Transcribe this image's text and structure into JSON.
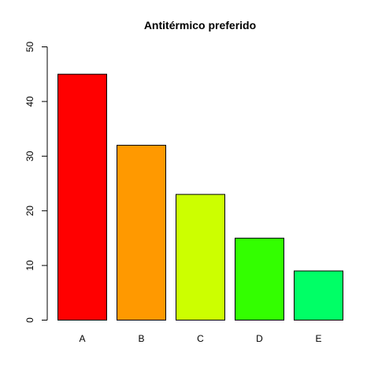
{
  "chart_data": {
    "type": "bar",
    "title": "Antitérmico preferido",
    "xlabel": "",
    "ylabel": "",
    "categories": [
      "A",
      "B",
      "C",
      "D",
      "E"
    ],
    "values": [
      45,
      32,
      23,
      15,
      9
    ],
    "colors": [
      "#FF0000",
      "#FF9900",
      "#CCFF00",
      "#33FF00",
      "#00FF66"
    ],
    "ylim": [
      0,
      50
    ],
    "yticks": [
      0,
      10,
      20,
      30,
      40,
      50
    ],
    "grid": false,
    "legend": "none"
  }
}
